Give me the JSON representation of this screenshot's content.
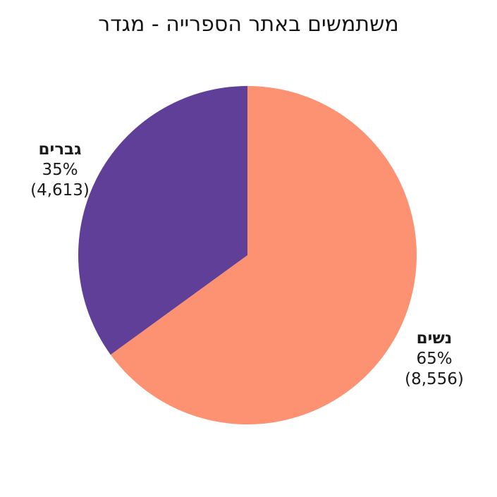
{
  "chart_data": {
    "type": "pie",
    "title": "משתמשים באתר הספרייה - מגדר",
    "title_color": "#151515",
    "background_color": "#ffffff",
    "legend_position": "none",
    "labels": "outside",
    "direction": "clockwise",
    "start_angle_deg": 0,
    "slices": [
      {
        "label": "נשים",
        "percent": 65,
        "value": 8556,
        "percent_display": "65%",
        "value_display": "(8,556)",
        "color": "#fc9272"
      },
      {
        "label": "גברים",
        "percent": 35,
        "value": 4613,
        "percent_display": "35%",
        "value_display": "(4,613)",
        "color": "#5f3f97"
      }
    ]
  }
}
